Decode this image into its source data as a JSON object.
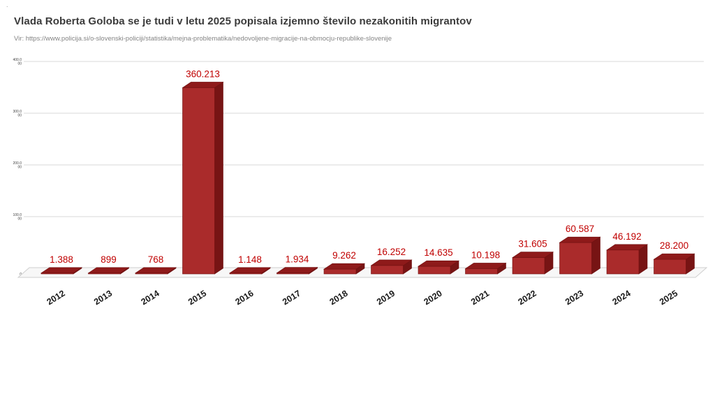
{
  "page": {
    "corner_mark": "."
  },
  "chart_data": {
    "type": "bar",
    "style": "3d-bar",
    "title": "Vlada Roberta Goloba se je tudi v letu 2025 popisala izjemno število nezakonitih migrantov",
    "source": "Vir:  https://www.policija.si/o-slovenski-policiji/statistika/mejna-problematika/nedovoljene-migracije-na-obmocju-republike-slovenije",
    "categories": [
      "2012",
      "2013",
      "2014",
      "2015",
      "2016",
      "2017",
      "2018",
      "2019",
      "2020",
      "2021",
      "2022",
      "2023",
      "2024",
      "2025"
    ],
    "values": [
      1388,
      899,
      768,
      360213,
      1148,
      1934,
      9262,
      16252,
      14635,
      10198,
      31605,
      60587,
      46192,
      28200
    ],
    "value_labels": [
      "1.388",
      "899",
      "768",
      "360.213",
      "1.148",
      "1.934",
      "9.262",
      "16.252",
      "14.635",
      "10.198",
      "31.605",
      "60.587",
      "46.192",
      "28.200"
    ],
    "ylim": [
      0,
      400000
    ],
    "yticks": [
      0,
      100000,
      200000,
      300000,
      400000
    ],
    "ytick_labels": [
      "0",
      "100.000",
      "200.000",
      "300.000",
      "400.000"
    ],
    "grid": true,
    "legend": "none",
    "colors": {
      "bar_front": "#AA2B2B",
      "bar_top": "#8E1A1A",
      "bar_side": "#771414",
      "bar_stroke": "#6E1010",
      "value_label": "#C00000",
      "axis_label": "#1A1A1A",
      "tick_label": "#444444",
      "gridline": "#D9D9D9",
      "floor_fill": "#F7F7F7",
      "floor_stroke": "#CFCFCF"
    }
  }
}
